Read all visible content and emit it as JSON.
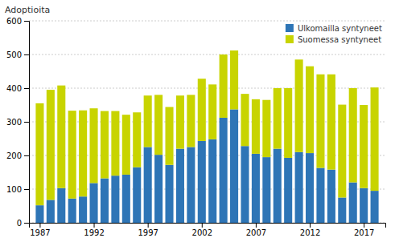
{
  "chart_data": {
    "type": "bar",
    "stacked": true,
    "ylabel": "Adoptioita",
    "x": [
      1987,
      1988,
      1989,
      1990,
      1991,
      1992,
      1993,
      1994,
      1995,
      1996,
      1997,
      1998,
      1999,
      2000,
      2001,
      2002,
      2003,
      2004,
      2005,
      2006,
      2007,
      2008,
      2009,
      2010,
      2011,
      2012,
      2013,
      2014,
      2015,
      2016,
      2017,
      2018
    ],
    "series": [
      {
        "name": "Ulkomailla syntyneet",
        "color": "#2E75B6",
        "values": [
          52,
          68,
          103,
          72,
          78,
          118,
          132,
          140,
          143,
          165,
          225,
          202,
          172,
          220,
          225,
          243,
          248,
          312,
          337,
          228,
          205,
          195,
          220,
          193,
          210,
          207,
          163,
          158,
          75,
          120,
          103,
          95
        ]
      },
      {
        "name": "Suomessa syntyneet",
        "color": "#C8D400",
        "values": [
          303,
          327,
          305,
          261,
          256,
          222,
          200,
          192,
          178,
          163,
          153,
          178,
          172,
          158,
          155,
          185,
          163,
          188,
          175,
          155,
          162,
          170,
          180,
          207,
          275,
          258,
          278,
          283,
          276,
          280,
          247,
          307
        ]
      }
    ],
    "xlim": [
      1986,
      2019
    ],
    "xticks": [
      1987,
      1992,
      1997,
      2002,
      2007,
      2012,
      2017
    ],
    "ylim": [
      0,
      600
    ],
    "yticks": [
      0,
      100,
      200,
      300,
      400,
      500,
      600
    ],
    "grid": true,
    "legend": "upper right"
  }
}
